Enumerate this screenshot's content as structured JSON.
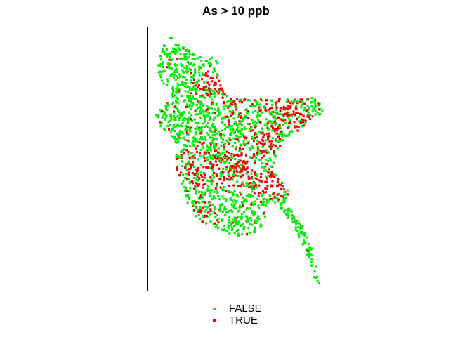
{
  "title": "As > 10 ppb",
  "legend": [
    {
      "label": "FALSE",
      "color": "#00ee00"
    },
    {
      "label": "TRUE",
      "color": "#ee0000"
    }
  ],
  "colors": {
    "false": "#00ee00",
    "true": "#ee0000",
    "frame": "#000000"
  }
}
